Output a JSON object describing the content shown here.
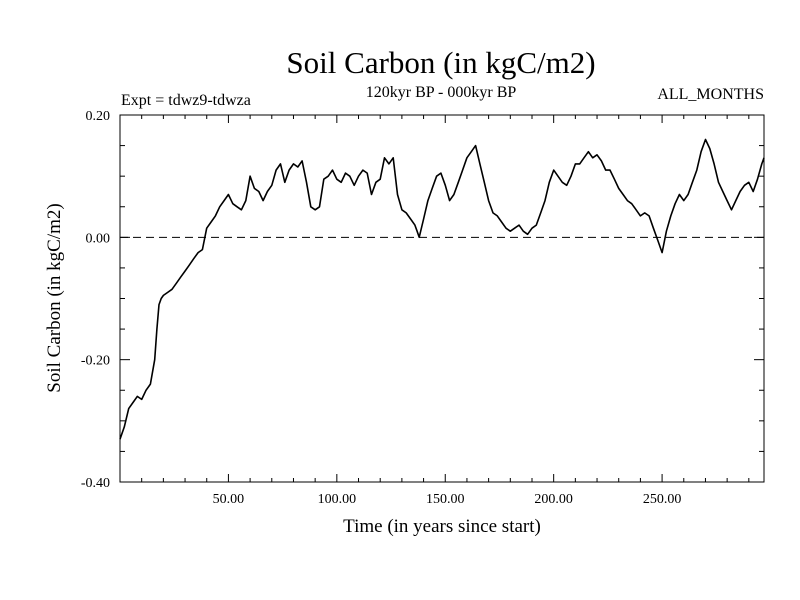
{
  "chart_data": {
    "type": "line",
    "title": "Soil Carbon (in kgC/m2)",
    "subtitle": "120kyr BP - 000kyr BP",
    "experiment_label": "Expt = tdwz9-tdwza",
    "months_label": "ALL_MONTHS",
    "xlabel": "Time (in years since start)",
    "ylabel": "Soil Carbon (in kgC/m2)",
    "xlim": [
      0,
      297
    ],
    "ylim": [
      -0.4,
      0.2
    ],
    "x_ticks": [
      50,
      100,
      150,
      200,
      250
    ],
    "x_tick_labels": [
      "50.00",
      "100.00",
      "150.00",
      "200.00",
      "250.00"
    ],
    "y_ticks": [
      -0.4,
      -0.2,
      0.0,
      0.2
    ],
    "y_tick_labels": [
      "-0.40",
      "-0.20",
      "0.00",
      "0.20"
    ],
    "zero_line": 0.0,
    "series": [
      {
        "name": "Soil Carbon",
        "x": [
          0,
          2,
          4,
          6,
          8,
          10,
          12,
          14,
          16,
          17,
          18,
          19,
          20,
          22,
          24,
          26,
          28,
          30,
          32,
          34,
          36,
          38,
          40,
          42,
          44,
          46,
          48,
          50,
          52,
          54,
          56,
          58,
          60,
          62,
          64,
          66,
          68,
          70,
          72,
          74,
          76,
          78,
          80,
          82,
          84,
          86,
          88,
          90,
          92,
          94,
          96,
          98,
          100,
          102,
          104,
          106,
          108,
          110,
          112,
          114,
          116,
          118,
          120,
          122,
          124,
          126,
          128,
          130,
          132,
          134,
          136,
          137,
          138,
          140,
          142,
          144,
          146,
          148,
          150,
          152,
          154,
          156,
          158,
          160,
          162,
          164,
          166,
          168,
          170,
          172,
          174,
          176,
          178,
          180,
          182,
          184,
          186,
          188,
          190,
          192,
          194,
          196,
          198,
          200,
          202,
          204,
          206,
          208,
          210,
          212,
          214,
          216,
          218,
          220,
          222,
          224,
          226,
          228,
          230,
          232,
          234,
          236,
          238,
          240,
          242,
          244,
          246,
          248,
          250,
          252,
          254,
          256,
          258,
          260,
          262,
          264,
          266,
          268,
          270,
          272,
          274,
          276,
          278,
          280,
          282,
          284,
          286,
          288,
          290,
          292,
          294,
          296,
          297
        ],
        "values": [
          -0.33,
          -0.31,
          -0.28,
          -0.27,
          -0.26,
          -0.265,
          -0.25,
          -0.24,
          -0.2,
          -0.15,
          -0.11,
          -0.1,
          -0.095,
          -0.09,
          -0.085,
          -0.075,
          -0.065,
          -0.055,
          -0.045,
          -0.035,
          -0.025,
          -0.02,
          0.015,
          0.025,
          0.035,
          0.05,
          0.06,
          0.07,
          0.055,
          0.05,
          0.045,
          0.06,
          0.1,
          0.08,
          0.075,
          0.06,
          0.075,
          0.085,
          0.11,
          0.12,
          0.09,
          0.11,
          0.12,
          0.115,
          0.125,
          0.09,
          0.05,
          0.045,
          0.05,
          0.095,
          0.1,
          0.11,
          0.095,
          0.09,
          0.105,
          0.1,
          0.085,
          0.1,
          0.11,
          0.105,
          0.07,
          0.09,
          0.095,
          0.13,
          0.12,
          0.13,
          0.07,
          0.045,
          0.04,
          0.03,
          0.02,
          0.01,
          0.0,
          0.03,
          0.06,
          0.08,
          0.1,
          0.105,
          0.085,
          0.06,
          0.07,
          0.09,
          0.11,
          0.13,
          0.14,
          0.15,
          0.12,
          0.09,
          0.06,
          0.04,
          0.035,
          0.025,
          0.015,
          0.01,
          0.015,
          0.02,
          0.01,
          0.005,
          0.015,
          0.02,
          0.04,
          0.06,
          0.09,
          0.11,
          0.1,
          0.09,
          0.085,
          0.1,
          0.12,
          0.12,
          0.13,
          0.14,
          0.13,
          0.135,
          0.125,
          0.11,
          0.11,
          0.095,
          0.08,
          0.07,
          0.06,
          0.055,
          0.045,
          0.035,
          0.04,
          0.035,
          0.015,
          -0.005,
          -0.025,
          0.01,
          0.035,
          0.055,
          0.07,
          0.06,
          0.07,
          0.09,
          0.11,
          0.14,
          0.16,
          0.145,
          0.12,
          0.09,
          0.075,
          0.06,
          0.045,
          0.06,
          0.075,
          0.085,
          0.09,
          0.075,
          0.095,
          0.12,
          0.13
        ]
      }
    ]
  }
}
